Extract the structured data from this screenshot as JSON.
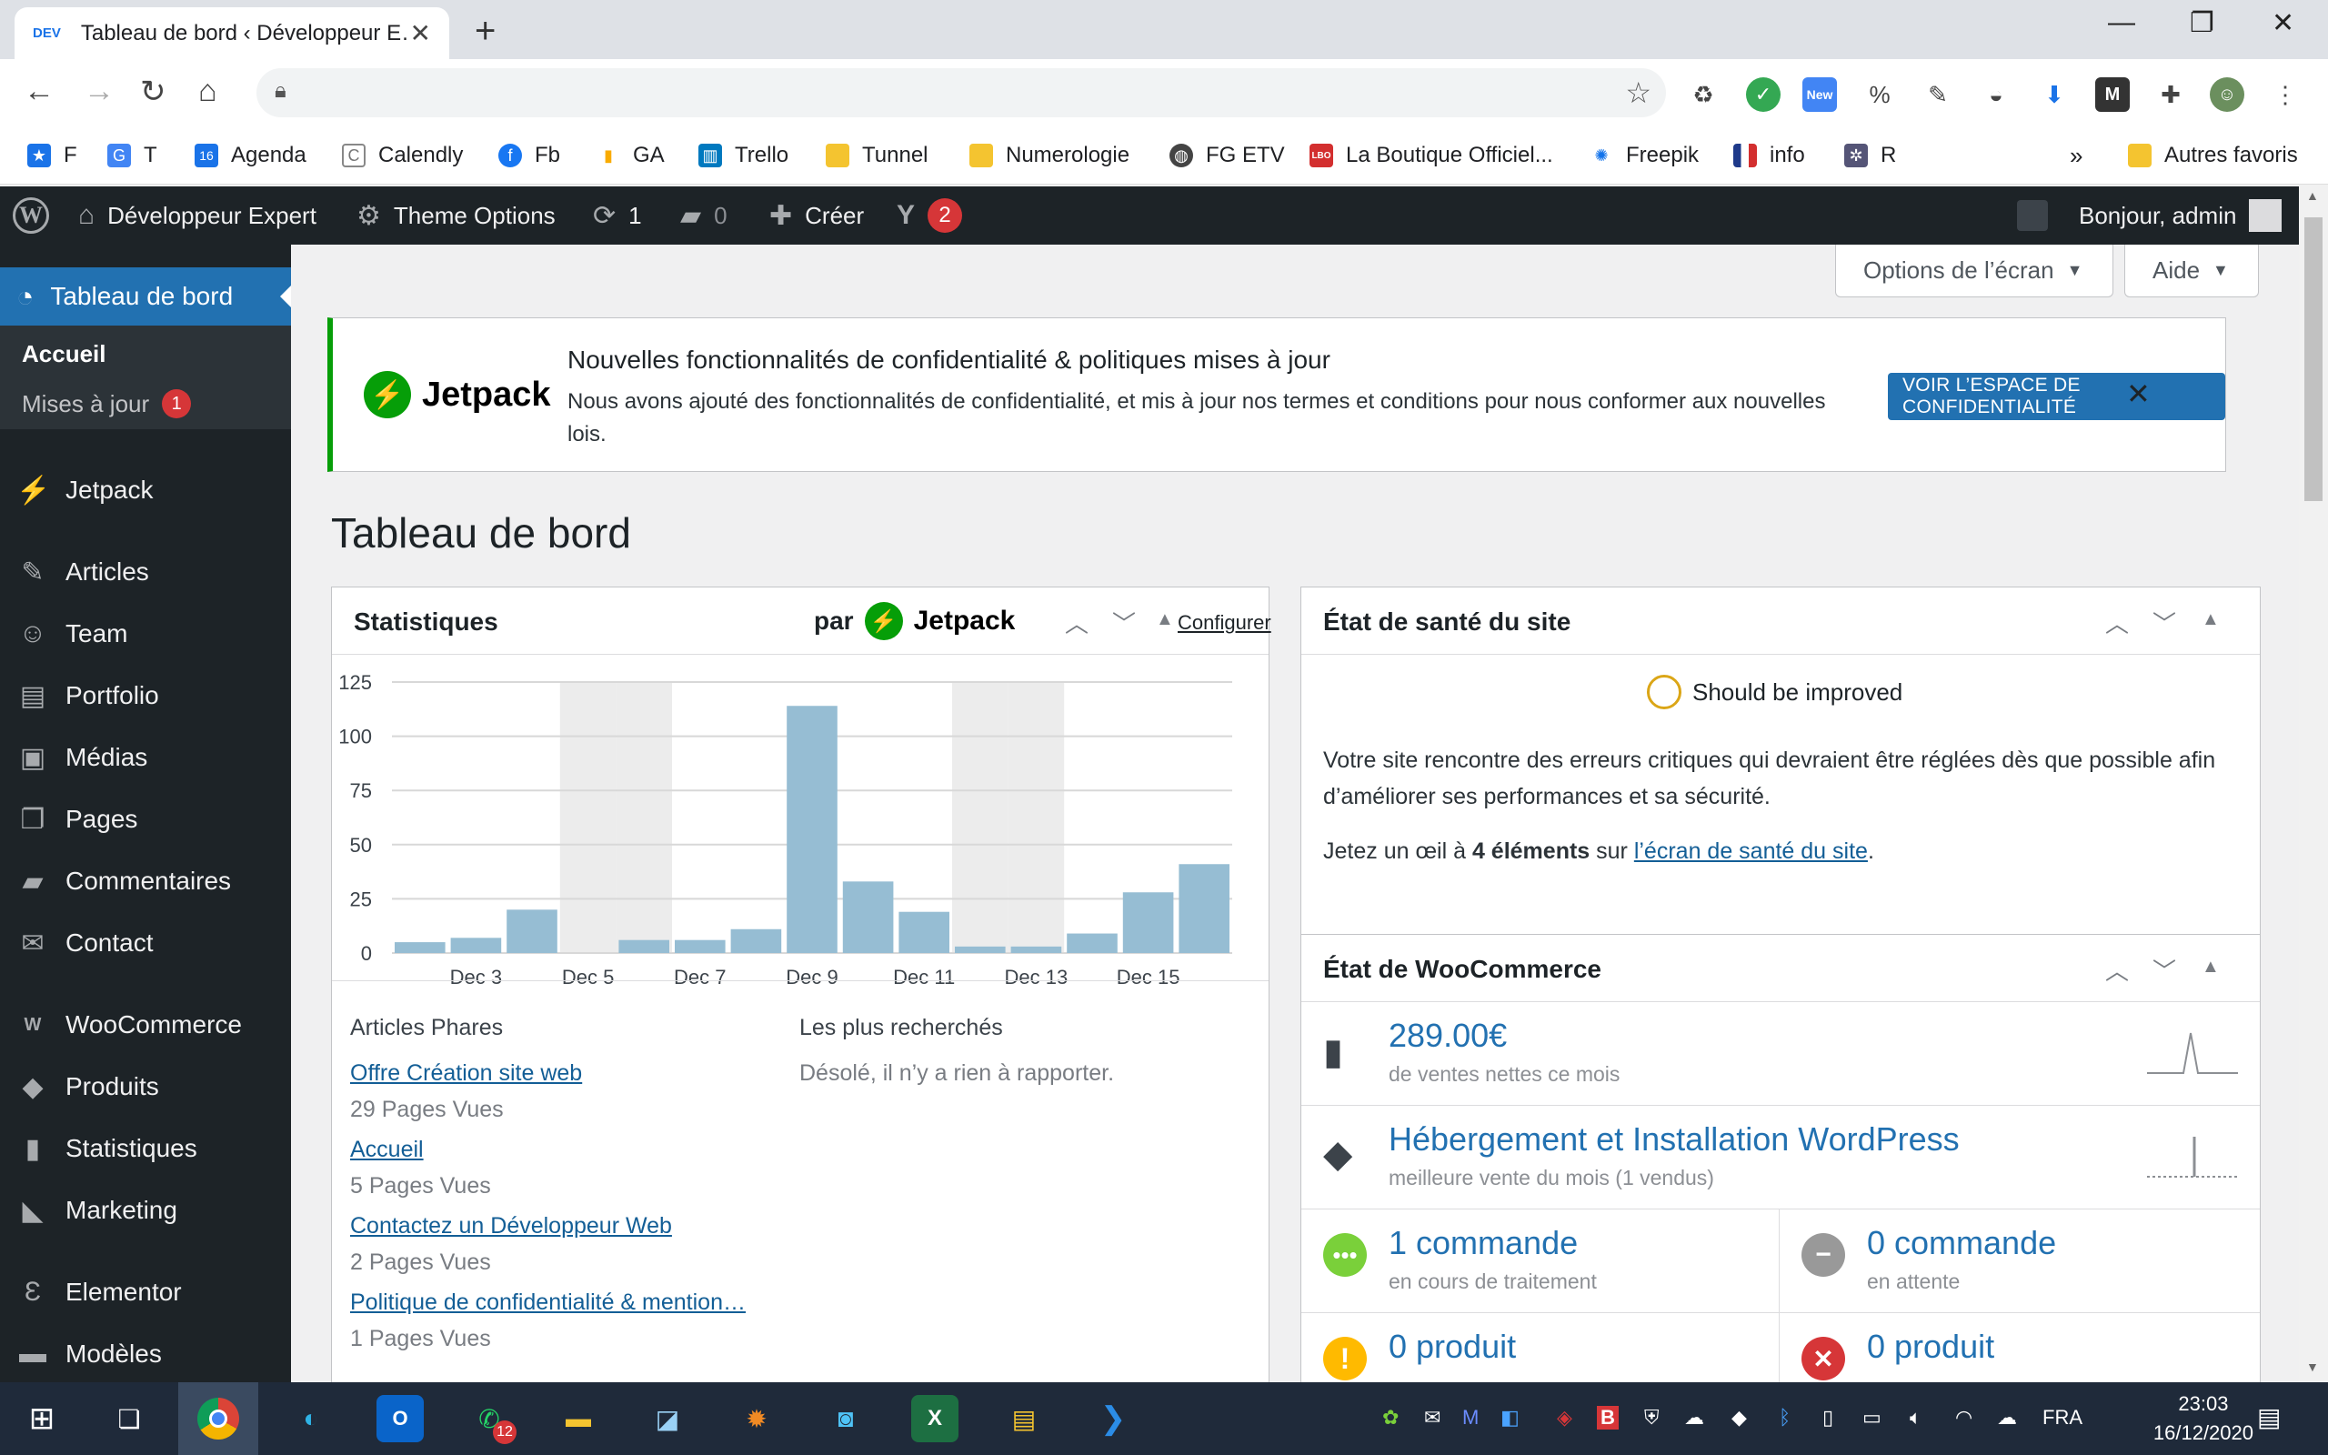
{
  "browser": {
    "tab_favicon": "DEV",
    "tab_title": "Tableau de bord ‹ Développeur E…",
    "bookmarks": [
      {
        "label": "F",
        "icon": "star-icon",
        "color": "#1a73e8"
      },
      {
        "label": "T",
        "icon": "translate-icon",
        "color": "#4285f4"
      },
      {
        "label": "Agenda",
        "icon": "calendar-icon",
        "color": "#1a73e8"
      },
      {
        "label": "Calendly",
        "icon": "calendly-icon",
        "color": "#888888"
      },
      {
        "label": "Fb",
        "icon": "facebook-icon",
        "color": "#1877f2"
      },
      {
        "label": "GA",
        "icon": "analytics-icon",
        "color": "#f9ab00"
      },
      {
        "label": "Trello",
        "icon": "trello-icon",
        "color": "#0079bf"
      },
      {
        "label": "Tunnel",
        "icon": "folder-icon",
        "color": "#f4c430"
      },
      {
        "label": "Numerologie",
        "icon": "folder-icon",
        "color": "#f4c430"
      },
      {
        "label": "FG ETV",
        "icon": "globe-icon",
        "color": "#444444"
      },
      {
        "label": "La Boutique Officiel...",
        "icon": "lbo-icon",
        "color": "#d32f2f"
      },
      {
        "label": "Freepik",
        "icon": "freepik-icon",
        "color": "#1273eb"
      },
      {
        "label": "info",
        "icon": "flag-icon",
        "color": "#1e3a8a"
      },
      {
        "label": "R",
        "icon": "r-icon",
        "color": "#555577"
      }
    ],
    "more_bookmarks": "»",
    "other_bookmarks": "Autres favoris",
    "ext_new_badge": "New"
  },
  "adminbar": {
    "site_name": "Développeur Expert",
    "theme_options": "Theme Options",
    "updates_count": "1",
    "comments_count": "0",
    "create": "Créer",
    "yoast_count": "2",
    "greeting": "Bonjour, admin"
  },
  "sidebar": {
    "active": "Tableau de bord",
    "sub_home": "Accueil",
    "sub_updates": "Mises à jour",
    "sub_updates_count": "1",
    "items": [
      {
        "label": "Jetpack",
        "icon": "jetpack-icon",
        "glyph": "⚡"
      },
      {
        "label": "Articles",
        "icon": "pin-icon",
        "glyph": "✎"
      },
      {
        "label": "Team",
        "icon": "team-icon",
        "glyph": "☺"
      },
      {
        "label": "Portfolio",
        "icon": "portfolio-icon",
        "glyph": "▤"
      },
      {
        "label": "Médias",
        "icon": "media-icon",
        "glyph": "▣"
      },
      {
        "label": "Pages",
        "icon": "pages-icon",
        "glyph": "❐"
      },
      {
        "label": "Commentaires",
        "icon": "comments-icon",
        "glyph": "▰"
      },
      {
        "label": "Contact",
        "icon": "mail-icon",
        "glyph": "✉"
      },
      {
        "label": "WooCommerce",
        "icon": "woo-icon",
        "glyph": "W"
      },
      {
        "label": "Produits",
        "icon": "box-icon",
        "glyph": "◆"
      },
      {
        "label": "Statistiques",
        "icon": "bar-chart-icon",
        "glyph": "▮"
      },
      {
        "label": "Marketing",
        "icon": "megaphone-icon",
        "glyph": "◣"
      },
      {
        "label": "Elementor",
        "icon": "elementor-icon",
        "glyph": "Ɛ"
      },
      {
        "label": "Modèles",
        "icon": "folder-icon",
        "glyph": "▬"
      }
    ]
  },
  "header": {
    "screen_options": "Options de l’écran",
    "help": "Aide"
  },
  "notice": {
    "logo_word": "Jetpack",
    "title": "Nouvelles fonctionnalités de confidentialité & politiques mises à jour",
    "body": "Nous avons ajouté des fonctionnalités de confidentialité, et mis à jour nos termes et conditions pour nous conformer aux nouvelles lois.",
    "cta": "VOIR L’ESPACE DE CONFIDENTIALITÉ"
  },
  "page_title": "Tableau de bord",
  "stats_box": {
    "title": "Statistiques",
    "par": "par",
    "jetpack": "Jetpack",
    "configure": "Configurer",
    "top_posts_heading": "Articles Phares",
    "search_heading": "Les plus recherchés",
    "search_empty": "Désolé, il n’y a rien à rapporter.",
    "top_posts": [
      {
        "title": "Offre Création site web",
        "views": "29 Pages Vues"
      },
      {
        "title": "Accueil",
        "views": "5 Pages Vues"
      },
      {
        "title": "Contactez un Développeur Web",
        "views": "2 Pages Vues"
      },
      {
        "title": "Politique de confidentialité & mention…",
        "views": "1 Pages Vues"
      }
    ]
  },
  "chart_data": {
    "type": "bar",
    "title": "",
    "xlabel": "",
    "ylabel": "",
    "ylim": [
      0,
      125
    ],
    "yticks": [
      0,
      25,
      50,
      75,
      100,
      125
    ],
    "categories": [
      "Dec 2",
      "Dec 3",
      "Dec 4",
      "Dec 5",
      "Dec 6",
      "Dec 7",
      "Dec 8",
      "Dec 9",
      "Dec 10",
      "Dec 11",
      "Dec 12",
      "Dec 13",
      "Dec 14",
      "Dec 15",
      "Dec 16"
    ],
    "tick_labels": [
      "Dec 3",
      "Dec 5",
      "Dec 7",
      "Dec 9",
      "Dec 11",
      "Dec 13",
      "Dec 15"
    ],
    "weekend_categories": [
      "Dec 5",
      "Dec 6",
      "Dec 12",
      "Dec 13"
    ],
    "series": [
      {
        "values": [
          5,
          7,
          20,
          0,
          6,
          6,
          11,
          114,
          33,
          19,
          3,
          3,
          9,
          28,
          41
        ]
      }
    ],
    "bar_color": "#96bdd3",
    "weekend_color": "#ececec",
    "grid": true
  },
  "health_box": {
    "title": "État de santé du site",
    "status": "Should be improved",
    "text": "Votre site rencontre des erreurs critiques qui devraient être réglées dès que possible afin d’améliorer ses performances et sa sécurité.",
    "look_prefix": "Jetez un œil à ",
    "look_count": "4 éléments",
    "look_mid": " sur ",
    "look_link": "l’écran de santé du site",
    "look_suffix": "."
  },
  "woo_box": {
    "title": "État de WooCommerce",
    "sales_value": "289.00€",
    "sales_label": "de ventes nettes ce mois",
    "top_product": "Hébergement et Installation WordPress",
    "top_product_label": "meilleure vente du mois (1 vendus)",
    "processing_value": "1 commande",
    "processing_label": "en cours de traitement",
    "onhold_value": "0 commande",
    "onhold_label": "en attente",
    "low_stock_value": "0 produit",
    "out_stock_value": "0 produit"
  },
  "taskbar": {
    "mail_badge": "12",
    "language": "FRA",
    "time": "23:03",
    "date": "16/12/2020"
  }
}
